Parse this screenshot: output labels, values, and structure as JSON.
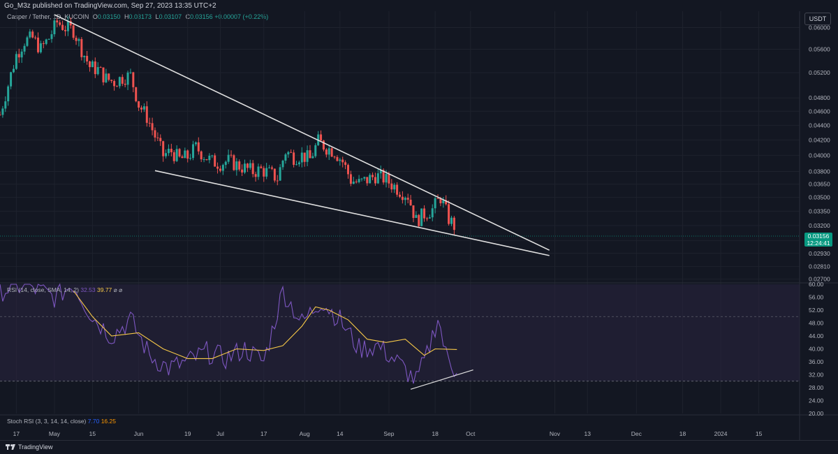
{
  "header": {
    "published": "Go_M3z published on TradingView.com, Sep 27, 2023 13:35 UTC+2",
    "symbol": "Casper / Tether, 1D, KUCOIN",
    "ohlc": [
      {
        "key": "O",
        "value": "0.03150"
      },
      {
        "key": "H",
        "value": "0.03173"
      },
      {
        "key": "L",
        "value": "0.03107"
      },
      {
        "key": "C",
        "value": "0.03156"
      }
    ],
    "change": "+0.00007 (+0.22%)",
    "currency_label": "USDT"
  },
  "price_tag": {
    "price": "0.03156",
    "countdown": "12:24:41"
  },
  "rsi_panel": {
    "name": "RSI (14, close, SMA, 14, 2)",
    "value_rsi": "32.53",
    "value_ma": "39.77",
    "flags": "⌀ ⌀"
  },
  "stoch_panel": {
    "name": "Stoch RSI (3, 3, 14, 14, close)",
    "k": "7.70",
    "d": "16.25"
  },
  "footer": {
    "brand": "TradingView"
  },
  "colors": {
    "background": "#131722",
    "up": "#26a69a",
    "down": "#ef5350",
    "rsi": "#7e57c2",
    "rsi_ma": "#f7c948",
    "rsi_band": "#2a2440",
    "trendline": "#e0e0e0"
  },
  "chart_data": {
    "type": "candlestick",
    "x_axis": {
      "labels": [
        {
          "text": "17",
          "date": "2023-04-17"
        },
        {
          "text": "May",
          "date": "2023-05-01"
        },
        {
          "text": "15",
          "date": "2023-05-15"
        },
        {
          "text": "Jun",
          "date": "2023-06-01"
        },
        {
          "text": "19",
          "date": "2023-06-19"
        },
        {
          "text": "Jul",
          "date": "2023-07-01"
        },
        {
          "text": "17",
          "date": "2023-07-17"
        },
        {
          "text": "Aug",
          "date": "2023-08-01"
        },
        {
          "text": "14",
          "date": "2023-08-14"
        },
        {
          "text": "Sep",
          "date": "2023-09-01"
        },
        {
          "text": "18",
          "date": "2023-09-18"
        },
        {
          "text": "Oct",
          "date": "2023-10-01"
        },
        {
          "text": "Nov",
          "date": "2023-11-01"
        },
        {
          "text": "13",
          "date": "2023-11-13"
        },
        {
          "text": "Dec",
          "date": "2023-12-01"
        },
        {
          "text": "18",
          "date": "2023-12-18"
        },
        {
          "text": "2024",
          "date": "2024-01-01"
        },
        {
          "text": "15",
          "date": "2024-01-15"
        }
      ],
      "range": [
        "2023-04-11",
        "2024-01-30"
      ]
    },
    "price_axis": {
      "ticks": [
        "0.06000",
        "0.05600",
        "0.05200",
        "0.04800",
        "0.04600",
        "0.04400",
        "0.04200",
        "0.04000",
        "0.03800",
        "0.03650",
        "0.03500",
        "0.03350",
        "0.03200",
        "0.03050",
        "0.02930",
        "0.02810",
        "0.02700"
      ]
    },
    "price_series": [
      [
        "2023-04-11",
        0.0455
      ],
      [
        "2023-04-14",
        0.05
      ],
      [
        "2023-04-17",
        0.055
      ],
      [
        "2023-04-20",
        0.0575
      ],
      [
        "2023-04-23",
        0.058
      ],
      [
        "2023-04-26",
        0.056
      ],
      [
        "2023-04-29",
        0.058
      ],
      [
        "2023-05-02",
        0.061
      ],
      [
        "2023-05-05",
        0.06
      ],
      [
        "2023-05-08",
        0.0595
      ],
      [
        "2023-05-11",
        0.056
      ],
      [
        "2023-05-14",
        0.053
      ],
      [
        "2023-05-17",
        0.0525
      ],
      [
        "2023-05-20",
        0.051
      ],
      [
        "2023-05-23",
        0.0505
      ],
      [
        "2023-05-26",
        0.0512
      ],
      [
        "2023-05-29",
        0.0515
      ],
      [
        "2023-06-01",
        0.047
      ],
      [
        "2023-06-04",
        0.0452
      ],
      [
        "2023-06-07",
        0.0425
      ],
      [
        "2023-06-10",
        0.04
      ],
      [
        "2023-06-13",
        0.0405
      ],
      [
        "2023-06-16",
        0.0395
      ],
      [
        "2023-06-19",
        0.0398
      ],
      [
        "2023-06-22",
        0.041
      ],
      [
        "2023-06-25",
        0.04
      ],
      [
        "2023-06-28",
        0.0392
      ],
      [
        "2023-07-01",
        0.039
      ],
      [
        "2023-07-04",
        0.0393
      ],
      [
        "2023-07-07",
        0.0388
      ],
      [
        "2023-07-10",
        0.0384
      ],
      [
        "2023-07-13",
        0.038
      ],
      [
        "2023-07-16",
        0.0382
      ],
      [
        "2023-07-19",
        0.0378
      ],
      [
        "2023-07-22",
        0.0372
      ],
      [
        "2023-07-25",
        0.0405
      ],
      [
        "2023-07-28",
        0.0398
      ],
      [
        "2023-07-31",
        0.04
      ],
      [
        "2023-08-03",
        0.0395
      ],
      [
        "2023-08-06",
        0.0418
      ],
      [
        "2023-08-09",
        0.041
      ],
      [
        "2023-08-12",
        0.0405
      ],
      [
        "2023-08-15",
        0.0392
      ],
      [
        "2023-08-18",
        0.037
      ],
      [
        "2023-08-21",
        0.0366
      ],
      [
        "2023-08-24",
        0.037
      ],
      [
        "2023-08-27",
        0.0375
      ],
      [
        "2023-08-30",
        0.0372
      ],
      [
        "2023-09-02",
        0.0365
      ],
      [
        "2023-09-05",
        0.0358
      ],
      [
        "2023-09-08",
        0.0352
      ],
      [
        "2023-09-11",
        0.0325
      ],
      [
        "2023-09-14",
        0.0332
      ],
      [
        "2023-09-17",
        0.0337
      ],
      [
        "2023-09-20",
        0.035
      ],
      [
        "2023-09-23",
        0.0327
      ],
      [
        "2023-09-26",
        0.0316
      ]
    ],
    "trendlines": [
      {
        "from": [
          "2023-05-01",
          0.0625
        ],
        "to": [
          "2023-10-30",
          0.0296
        ]
      },
      {
        "from": [
          "2023-06-07",
          0.0381
        ],
        "to": [
          "2023-10-30",
          0.0291
        ]
      }
    ],
    "rsi": {
      "range": [
        20,
        60
      ],
      "ticks": [
        60,
        56,
        52,
        48,
        44,
        40,
        36,
        32,
        28,
        24,
        20
      ],
      "band": [
        30,
        70
      ],
      "series": [
        [
          "2023-04-11",
          58
        ],
        [
          "2023-04-20",
          60
        ],
        [
          "2023-05-01",
          56
        ],
        [
          "2023-05-08",
          60
        ],
        [
          "2023-05-15",
          50
        ],
        [
          "2023-05-22",
          44
        ],
        [
          "2023-05-29",
          49
        ],
        [
          "2023-06-05",
          38
        ],
        [
          "2023-06-12",
          34
        ],
        [
          "2023-06-19",
          36
        ],
        [
          "2023-06-26",
          39
        ],
        [
          "2023-07-03",
          37
        ],
        [
          "2023-07-10",
          40
        ],
        [
          "2023-07-17",
          36
        ],
        [
          "2023-07-24",
          58
        ],
        [
          "2023-07-31",
          48
        ],
        [
          "2023-08-07",
          55
        ],
        [
          "2023-08-14",
          49
        ],
        [
          "2023-08-21",
          40
        ],
        [
          "2023-08-28",
          41
        ],
        [
          "2023-09-04",
          36
        ],
        [
          "2023-09-11",
          30
        ],
        [
          "2023-09-15",
          38
        ],
        [
          "2023-09-19",
          50
        ],
        [
          "2023-09-22",
          38
        ],
        [
          "2023-09-26",
          32.5
        ]
      ],
      "ma_series": [
        [
          "2023-05-08",
          58
        ],
        [
          "2023-05-15",
          50
        ],
        [
          "2023-05-22",
          44
        ],
        [
          "2023-06-01",
          45
        ],
        [
          "2023-06-10",
          40
        ],
        [
          "2023-06-19",
          37
        ],
        [
          "2023-06-28",
          37
        ],
        [
          "2023-07-07",
          40
        ],
        [
          "2023-07-17",
          39.5
        ],
        [
          "2023-07-24",
          41
        ],
        [
          "2023-07-31",
          47
        ],
        [
          "2023-08-05",
          53
        ],
        [
          "2023-08-10",
          52
        ],
        [
          "2023-08-17",
          49
        ],
        [
          "2023-08-24",
          43
        ],
        [
          "2023-08-31",
          42
        ],
        [
          "2023-09-07",
          43
        ],
        [
          "2023-09-14",
          38
        ],
        [
          "2023-09-18",
          40
        ],
        [
          "2023-09-26",
          39.8
        ]
      ],
      "divergence_line": {
        "from": [
          "2023-09-09",
          27.5
        ],
        "to": [
          "2023-10-02",
          33.5
        ]
      }
    },
    "stoch_rsi": {
      "ticks": []
    }
  }
}
